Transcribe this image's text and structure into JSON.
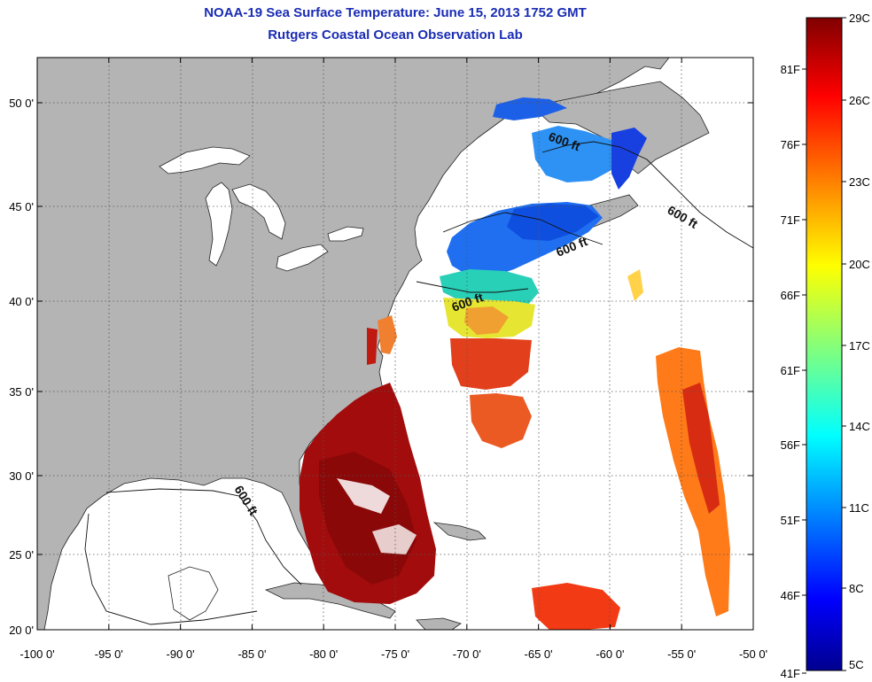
{
  "header": {
    "title": "NOAA-19 Sea Surface Temperature:  June 15, 2013 1752 GMT",
    "subtitle": "Rutgers Coastal Ocean Observation Lab"
  },
  "map": {
    "lon_range": [
      -100,
      -50
    ],
    "lat_range": [
      20,
      52.5
    ],
    "x_ticks": [
      "-100 0'",
      "-95 0'",
      "-90 0'",
      "-85 0'",
      "-80 0'",
      "-75 0'",
      "-70 0'",
      "-65 0'",
      "-60 0'",
      "-55 0'",
      "-50 0'"
    ],
    "y_ticks": [
      "20 0'",
      "25 0'",
      "30 0'",
      "35 0'",
      "40 0'",
      "45 0'",
      "50 0'"
    ],
    "land_color": "#b4b4b4",
    "no_data_color": "#ffffff",
    "graticule": "dotted",
    "isobath_label": "600 ft",
    "isobath_count": 5
  },
  "colorbar": {
    "celsius_labels": [
      "29C",
      "26C",
      "23C",
      "20C",
      "17C",
      "14C",
      "11C",
      "8C",
      "5C"
    ],
    "fahrenheit_labels": [
      "81F",
      "76F",
      "71F",
      "66F",
      "61F",
      "56F",
      "51F",
      "46F",
      "41F"
    ],
    "colormap": "jet",
    "range_c": [
      5,
      29
    ]
  }
}
